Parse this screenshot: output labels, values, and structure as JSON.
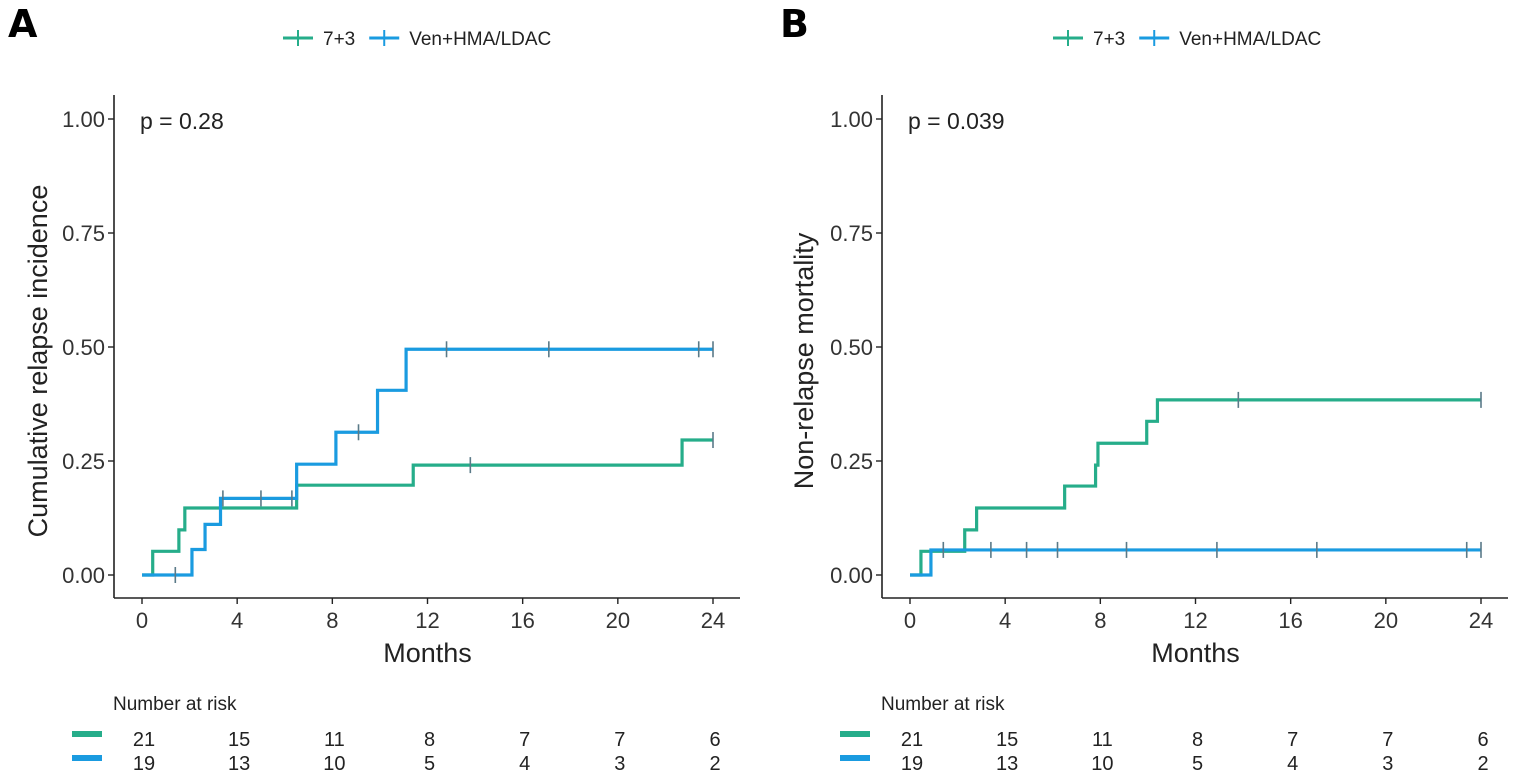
{
  "chart_data": [
    {
      "type": "line",
      "subtype": "step-cumulative-incidence",
      "panel_label": "A",
      "title": "",
      "xlabel": "Months",
      "ylabel": "Cumulative relapse incidence",
      "xlim": [
        0,
        24
      ],
      "ylim": [
        0,
        1
      ],
      "xticks": [
        "0",
        "4",
        "8",
        "12",
        "16",
        "20",
        "24"
      ],
      "yticks": [
        "0.00",
        "0.25",
        "0.50",
        "0.75",
        "1.00"
      ],
      "grid": false,
      "legend_position": "top",
      "annotation": "p = 0.28",
      "series": [
        {
          "name": "7+3",
          "color": "#26ad8a",
          "steps": [
            [
              0,
              0
            ],
            [
              0.45,
              0.052
            ],
            [
              1.55,
              0.099
            ],
            [
              1.8,
              0.147
            ],
            [
              6.5,
              0.197
            ],
            [
              11.4,
              0.241
            ],
            [
              22.7,
              0.296
            ],
            [
              24,
              0.296
            ]
          ],
          "censor_times": [
            13.8,
            24
          ]
        },
        {
          "name": "Ven+HMA/LDAC",
          "color": "#1a9be0",
          "steps": [
            [
              0,
              0
            ],
            [
              2.1,
              0.056
            ],
            [
              2.65,
              0.111
            ],
            [
              3.3,
              0.168
            ],
            [
              6.5,
              0.243
            ],
            [
              8.15,
              0.313
            ],
            [
              9.9,
              0.405
            ],
            [
              11.1,
              0.495
            ],
            [
              24,
              0.495
            ]
          ],
          "censor_times": [
            1.4,
            3.4,
            5.0,
            6.3,
            9.1,
            12.8,
            17.1,
            23.4,
            24
          ]
        }
      ],
      "risk_table": {
        "title": "Number at risk",
        "times": [
          0,
          4,
          8,
          12,
          16,
          20,
          24
        ],
        "rows": [
          {
            "name": "7+3",
            "color": "#26ad8a",
            "values": [
              "21",
              "15",
              "11",
              "8",
              "7",
              "7",
              "6"
            ]
          },
          {
            "name": "Ven+HMA/LDAC",
            "color": "#1a9be0",
            "values": [
              "19",
              "13",
              "10",
              "5",
              "4",
              "3",
              "2"
            ]
          }
        ]
      }
    },
    {
      "type": "line",
      "subtype": "step-cumulative-incidence",
      "panel_label": "B",
      "title": "",
      "xlabel": "Months",
      "ylabel": "Non-relapse mortality",
      "xlim": [
        0,
        24
      ],
      "ylim": [
        0,
        1
      ],
      "xticks": [
        "0",
        "4",
        "8",
        "12",
        "16",
        "20",
        "24"
      ],
      "yticks": [
        "0.00",
        "0.25",
        "0.50",
        "0.75",
        "1.00"
      ],
      "grid": false,
      "legend_position": "top",
      "annotation": "p = 0.039",
      "series": [
        {
          "name": "7+3",
          "color": "#26ad8a",
          "steps": [
            [
              0,
              0
            ],
            [
              0.46,
              0.052
            ],
            [
              2.3,
              0.099
            ],
            [
              2.8,
              0.147
            ],
            [
              6.5,
              0.195
            ],
            [
              7.8,
              0.241
            ],
            [
              7.9,
              0.289
            ],
            [
              9.95,
              0.337
            ],
            [
              10.4,
              0.384
            ],
            [
              24,
              0.384
            ]
          ],
          "censor_times": [
            13.8,
            24
          ]
        },
        {
          "name": "Ven+HMA/LDAC",
          "color": "#1a9be0",
          "steps": [
            [
              0,
              0
            ],
            [
              0.88,
              0.055
            ],
            [
              24,
              0.055
            ]
          ],
          "censor_times": [
            1.4,
            3.4,
            4.9,
            6.2,
            9.1,
            12.9,
            17.1,
            23.4,
            24
          ]
        }
      ],
      "risk_table": {
        "title": "Number at risk",
        "times": [
          0,
          4,
          8,
          12,
          16,
          20,
          24
        ],
        "rows": [
          {
            "name": "7+3",
            "color": "#26ad8a",
            "values": [
              "21",
              "15",
              "11",
              "8",
              "7",
              "7",
              "6"
            ]
          },
          {
            "name": "Ven+HMA/LDAC",
            "color": "#1a9be0",
            "values": [
              "19",
              "13",
              "10",
              "5",
              "4",
              "3",
              "2"
            ]
          }
        ]
      }
    }
  ]
}
